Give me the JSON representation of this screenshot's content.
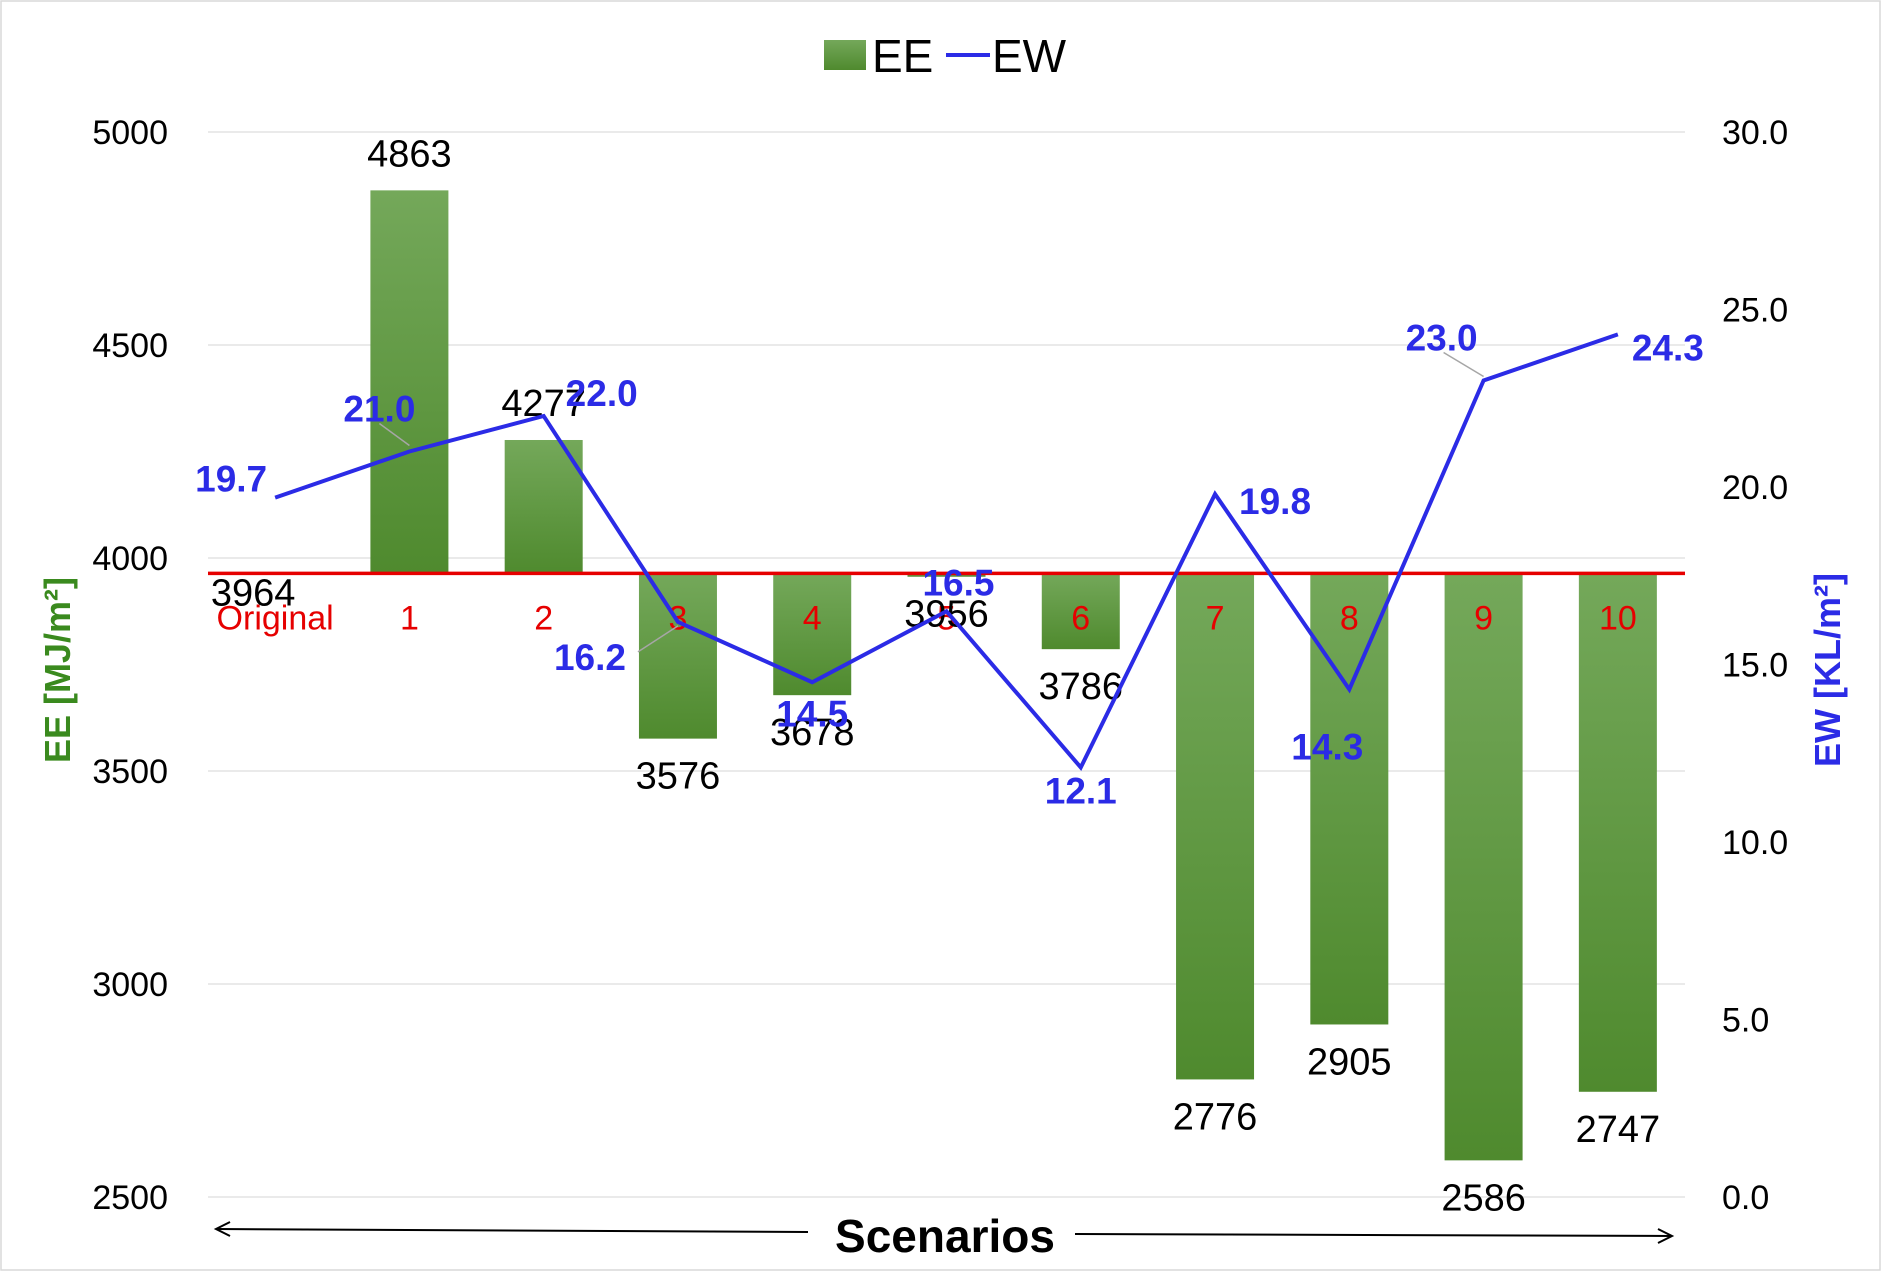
{
  "chart_data": {
    "type": "bar+line",
    "categories": [
      "Original",
      "1",
      "2",
      "3",
      "4",
      "5",
      "6",
      "7",
      "8",
      "9",
      "10"
    ],
    "baseline": 3964,
    "series": [
      {
        "name": "EE",
        "type": "bar",
        "axis": "left",
        "values": [
          3964,
          4863,
          4277,
          3576,
          3678,
          3956,
          3786,
          2776,
          2905,
          2586,
          2747
        ],
        "labels": [
          "3964",
          "4863",
          "4277",
          "3576",
          "3678",
          "3956",
          "3786",
          "2776",
          "2905",
          "2586",
          "2747"
        ]
      },
      {
        "name": "EW",
        "type": "line",
        "axis": "right",
        "values": [
          19.7,
          21.0,
          22.0,
          16.2,
          14.5,
          16.5,
          12.1,
          19.8,
          14.3,
          23.0,
          24.3
        ],
        "labels": [
          "19.7",
          "21.0",
          "22.0",
          "16.2",
          "14.5",
          "16.5",
          "12.1",
          "19.8",
          "14.3",
          "23.0",
          "24.3"
        ]
      }
    ],
    "y_left": {
      "label": "EE [MJ/m²]",
      "ylim": [
        2500,
        5000
      ],
      "ticks": [
        "5000",
        "4500",
        "4000",
        "3500",
        "3000",
        "2500"
      ]
    },
    "y_right": {
      "label": "EW [KL/m²]",
      "ylim": [
        0,
        30
      ],
      "ticks": [
        "30.0",
        "25.0",
        "20.0",
        "15.0",
        "10.0",
        "5.0",
        "0.0"
      ]
    },
    "xlabel": "Scenarios",
    "legend": {
      "position": "top-center",
      "items": [
        "EE",
        "EW"
      ]
    },
    "grid": true,
    "colors": {
      "bar_top": "#74a85a",
      "bar_bottom": "#4f8a2e",
      "line": "#2b2be6",
      "baseline": "#e60000",
      "category_text": "#e60000",
      "left_axis_title": "#3a8a1e",
      "right_axis_title": "#2b2be6"
    }
  }
}
